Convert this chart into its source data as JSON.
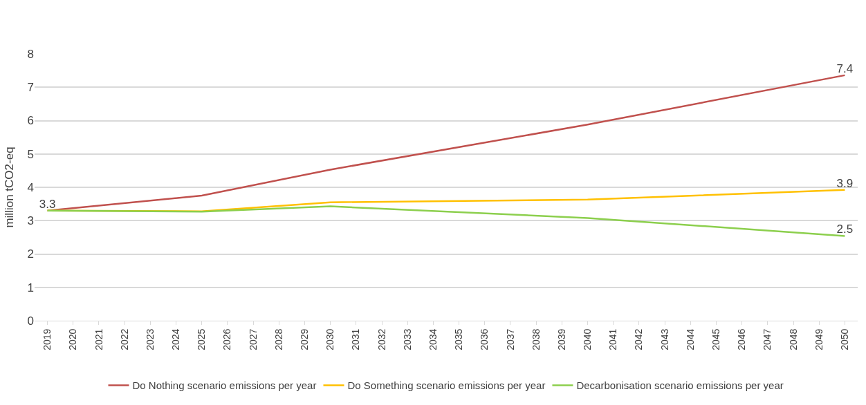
{
  "chart_data": {
    "type": "line",
    "ylabel": "million tCO2-eq",
    "xlim": [
      2018.5,
      2050.5
    ],
    "xticks": [
      2019,
      2020,
      2021,
      2022,
      2023,
      2024,
      2025,
      2026,
      2027,
      2028,
      2029,
      2030,
      2031,
      2032,
      2033,
      2034,
      2035,
      2036,
      2037,
      2038,
      2039,
      2040,
      2041,
      2042,
      2043,
      2044,
      2045,
      2046,
      2047,
      2048,
      2049,
      2050
    ],
    "ylim": [
      0,
      8
    ],
    "yticks": [
      0,
      1,
      2,
      3,
      4,
      5,
      6,
      7,
      8
    ],
    "grid": "y",
    "legend": "bottom",
    "marker": "none",
    "line_style": "solid",
    "series": [
      {
        "name": "Do Nothing scenario emissions per year",
        "color": "#c0504d",
        "x": [
          2019,
          2025,
          2030,
          2040,
          2050
        ],
        "values": [
          3.3,
          3.75,
          4.53,
          5.88,
          7.36
        ],
        "value_labels": [
          "3.3",
          null,
          null,
          null,
          "7.4"
        ]
      },
      {
        "name": "Do Something scenario emissions per year",
        "color": "#ffc000",
        "x": [
          2019,
          2025,
          2030,
          2040,
          2050
        ],
        "values": [
          3.3,
          3.28,
          3.55,
          3.63,
          3.92
        ],
        "value_labels": [
          null,
          null,
          null,
          null,
          "3.9"
        ]
      },
      {
        "name": "Decarbonisation scenario emissions per year",
        "color": "#8ccf4d",
        "x": [
          2019,
          2025,
          2030,
          2040,
          2050
        ],
        "values": [
          3.3,
          3.27,
          3.43,
          3.08,
          2.54
        ],
        "value_labels": [
          null,
          null,
          null,
          null,
          "2.5"
        ]
      }
    ]
  }
}
